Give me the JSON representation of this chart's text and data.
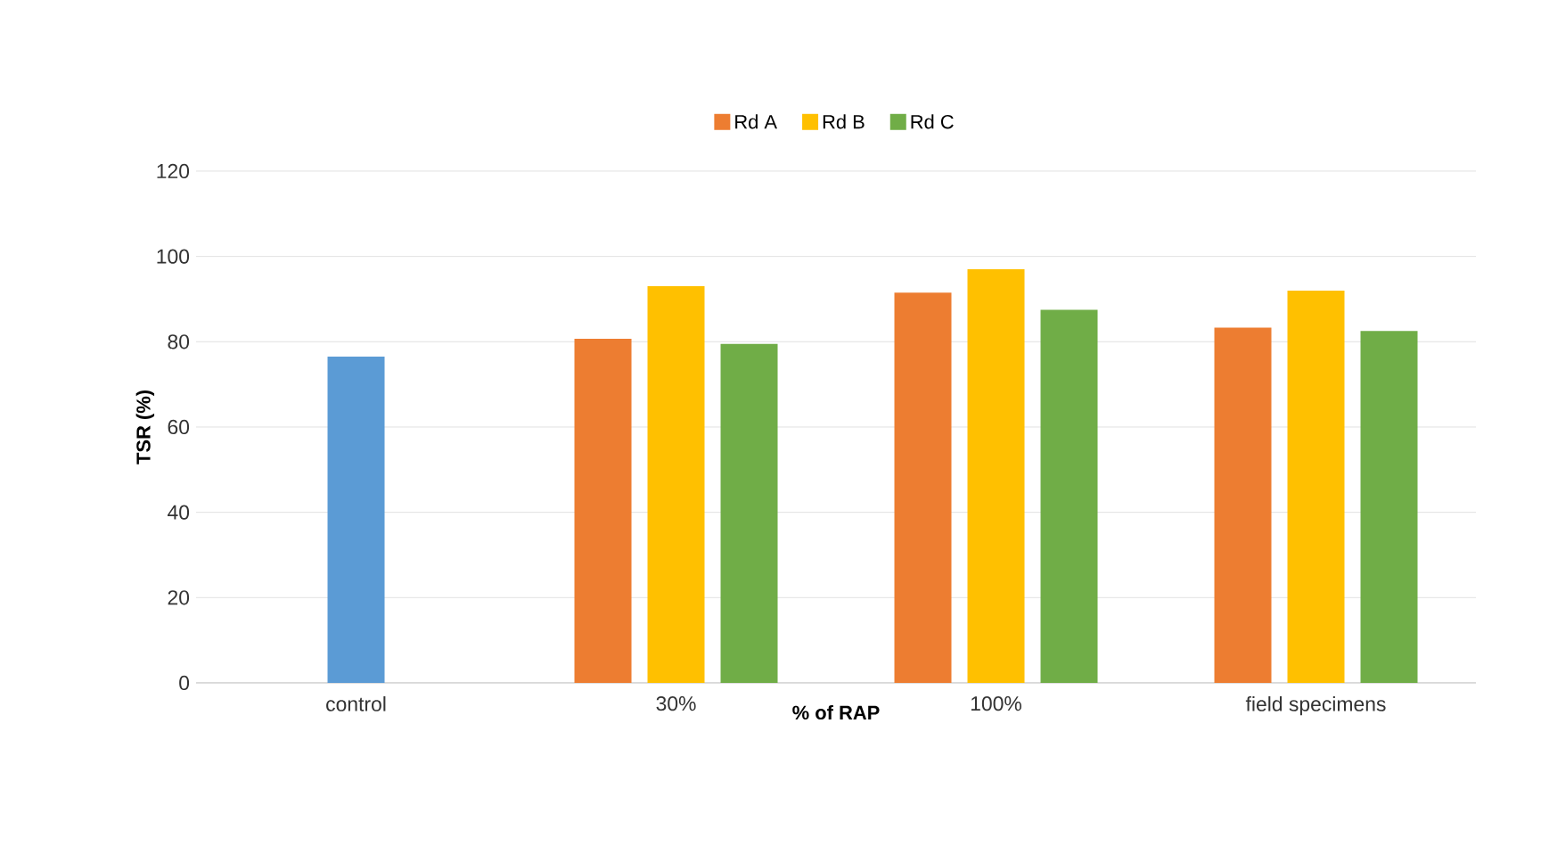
{
  "chart_data": {
    "type": "bar",
    "xlabel": "% of RAP",
    "ylabel": "TSR (%)",
    "categories": [
      "control",
      "30%",
      "100%",
      "field specimens"
    ],
    "series": [
      {
        "color": "#5b9bd5",
        "values": [
          76.5,
          null,
          null,
          null
        ]
      },
      {
        "name": "Rd A",
        "color": "#ed7d31",
        "values": [
          null,
          80.7,
          91.5,
          83.3
        ]
      },
      {
        "name": "Rd B",
        "color": "#ffc000",
        "values": [
          null,
          93,
          97,
          92
        ]
      },
      {
        "name": "Rd C",
        "color": "#70ad47",
        "values": [
          null,
          79.5,
          87.5,
          82.5
        ]
      }
    ],
    "ylim": [
      0,
      120
    ],
    "yticks": [
      0,
      20,
      40,
      60,
      80,
      100,
      120
    ],
    "grid": "y",
    "legend": "top"
  }
}
